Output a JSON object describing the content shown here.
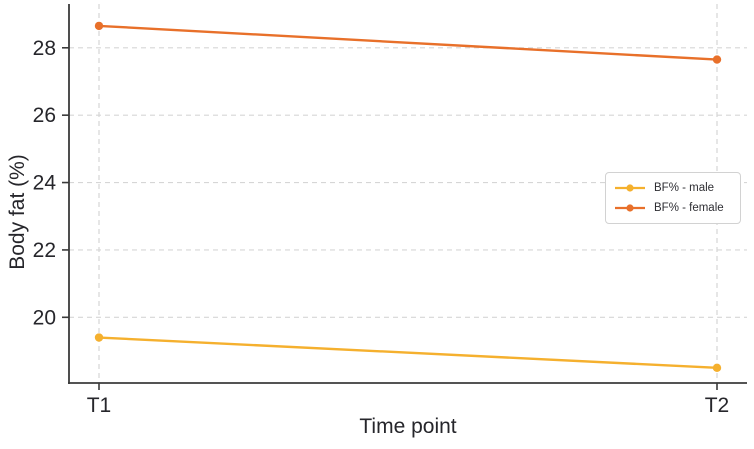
{
  "chart_data": {
    "type": "line",
    "title": "",
    "xlabel": "Time point",
    "ylabel": "Body fat (%)",
    "categories": [
      "T1",
      "T2"
    ],
    "series": [
      {
        "name": "BF% - male",
        "color": "#F5B02E",
        "values": [
          19.4,
          18.5
        ]
      },
      {
        "name": "BF% - female",
        "color": "#E8702A",
        "values": [
          28.65,
          27.65
        ]
      }
    ],
    "y_ticks": [
      20,
      22,
      24,
      26,
      28
    ],
    "ylim": [
      18.05,
      29.3
    ],
    "grid": "both-dashed",
    "legend_position": "middle-right"
  },
  "colors": {
    "axis_spine": "#3b3b3b",
    "tick_label": "#26262b",
    "gridline": "#d6d6d6",
    "background": "#ffffff"
  }
}
